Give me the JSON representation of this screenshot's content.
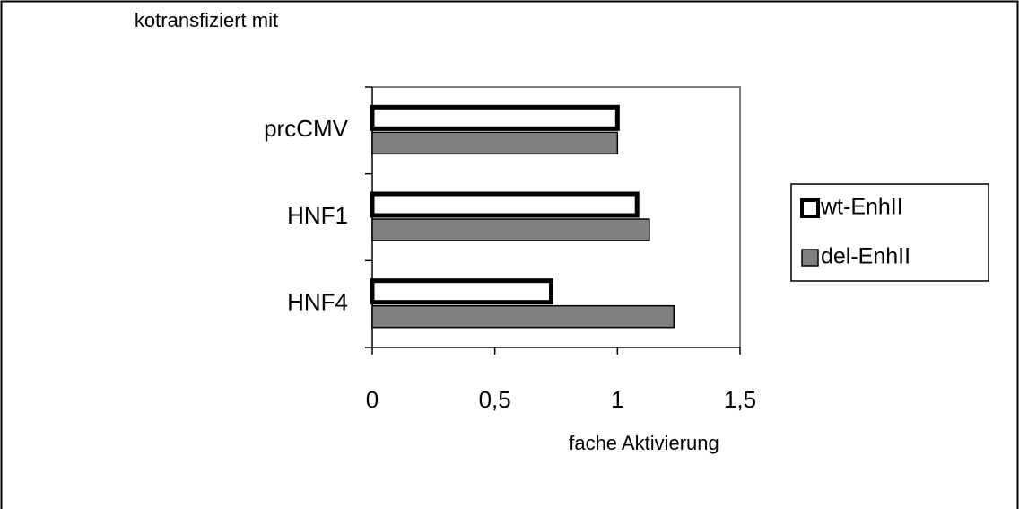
{
  "chart_data": {
    "type": "barh",
    "ylabel": "kotransfiziert mit",
    "xlabel": "fache Aktivierung",
    "categories": [
      "prcCMV",
      "HNF1",
      "HNF4"
    ],
    "series": [
      {
        "name": "wt-EnhII",
        "color": "#ffffff",
        "values": [
          1.0,
          1.08,
          0.73
        ]
      },
      {
        "name": "del-EnhII",
        "color": "#808080",
        "values": [
          1.0,
          1.13,
          1.23
        ]
      }
    ],
    "xlim": [
      0,
      1.5
    ],
    "xticks": [
      0,
      {
        "value": 0.5,
        "label": "0,5"
      },
      1,
      {
        "value": 1.5,
        "label": "1,5"
      }
    ],
    "legend": "right"
  }
}
